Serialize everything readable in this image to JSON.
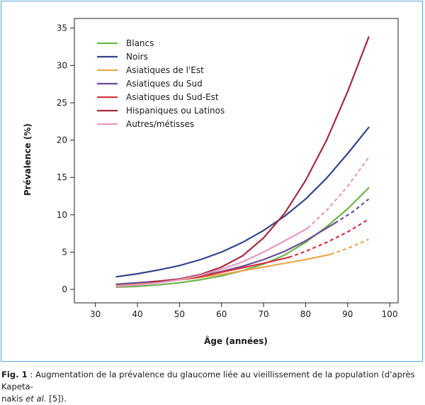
{
  "chart_data": {
    "type": "line",
    "xlabel": "Âge (années)",
    "ylabel": "Prévalence (%)",
    "xlim": [
      25,
      102
    ],
    "ylim": [
      -1.8,
      36.3
    ],
    "xticks": [
      30,
      40,
      50,
      60,
      70,
      80,
      90,
      100
    ],
    "yticks": [
      0,
      5,
      10,
      15,
      20,
      25,
      30,
      35
    ],
    "grid": false,
    "legend_position": "top-left",
    "series": [
      {
        "name": "Blancs",
        "color": "#6db64c",
        "solid": [
          [
            35,
            0.3
          ],
          [
            40,
            0.4
          ],
          [
            45,
            0.6
          ],
          [
            50,
            0.9
          ],
          [
            55,
            1.3
          ],
          [
            60,
            1.8
          ],
          [
            65,
            2.5
          ],
          [
            70,
            3.4
          ],
          [
            75,
            4.6
          ],
          [
            80,
            6.3
          ],
          [
            85,
            8.4
          ],
          [
            90,
            10.8
          ],
          [
            95,
            13.6
          ]
        ],
        "dashed": []
      },
      {
        "name": "Noirs",
        "color": "#33448b",
        "solid": [
          [
            35,
            1.7
          ],
          [
            40,
            2.1
          ],
          [
            45,
            2.6
          ],
          [
            50,
            3.2
          ],
          [
            55,
            4.0
          ],
          [
            60,
            5.0
          ],
          [
            65,
            6.3
          ],
          [
            70,
            7.9
          ],
          [
            75,
            9.8
          ],
          [
            80,
            12.1
          ],
          [
            85,
            14.9
          ],
          [
            90,
            18.2
          ],
          [
            95,
            21.7
          ]
        ],
        "dashed": []
      },
      {
        "name": "Asiatiques de l'Est",
        "color": "#e8a84a",
        "solid": [
          [
            35,
            0.6
          ],
          [
            40,
            0.8
          ],
          [
            45,
            1.0
          ],
          [
            50,
            1.3
          ],
          [
            55,
            1.6
          ],
          [
            60,
            2.0
          ],
          [
            65,
            2.5
          ],
          [
            70,
            3.0
          ],
          [
            75,
            3.5
          ],
          [
            80,
            4.0
          ],
          [
            86,
            4.7
          ]
        ],
        "dashed": [
          [
            86,
            4.7
          ],
          [
            90,
            5.5
          ],
          [
            95,
            6.7
          ]
        ]
      },
      {
        "name": "Asiatiques du Sud",
        "color": "#6c4b95",
        "solid": [
          [
            35,
            0.7
          ],
          [
            40,
            0.9
          ],
          [
            45,
            1.1
          ],
          [
            50,
            1.4
          ],
          [
            55,
            1.8
          ],
          [
            60,
            2.4
          ],
          [
            65,
            3.1
          ],
          [
            70,
            4.0
          ],
          [
            75,
            5.1
          ],
          [
            80,
            6.5
          ],
          [
            87,
            8.9
          ]
        ],
        "dashed": [
          [
            87,
            8.9
          ],
          [
            91,
            10.3
          ],
          [
            95,
            12.1
          ]
        ]
      },
      {
        "name": "Asiatiques du Sud-Est",
        "color": "#d2343f",
        "solid": [
          [
            35,
            0.4
          ],
          [
            40,
            0.6
          ],
          [
            45,
            0.9
          ],
          [
            50,
            1.3
          ],
          [
            55,
            1.7
          ],
          [
            60,
            2.3
          ],
          [
            65,
            2.9
          ],
          [
            70,
            3.5
          ],
          [
            76,
            4.3
          ]
        ],
        "dashed": [
          [
            76,
            4.3
          ],
          [
            80,
            5.1
          ],
          [
            85,
            6.3
          ],
          [
            90,
            7.7
          ],
          [
            95,
            9.4
          ]
        ]
      },
      {
        "name": "Hispaniques ou Latinos",
        "color": "#a52a3d",
        "solid": [
          [
            43,
            1.0
          ],
          [
            47,
            1.2
          ],
          [
            50,
            1.4
          ],
          [
            55,
            2.0
          ],
          [
            60,
            3.0
          ],
          [
            65,
            4.5
          ],
          [
            70,
            6.9
          ],
          [
            75,
            10.2
          ],
          [
            80,
            14.6
          ],
          [
            85,
            20.0
          ],
          [
            90,
            26.5
          ],
          [
            95,
            33.8
          ]
        ],
        "dashed": []
      },
      {
        "name": "Autres/métisses",
        "color": "#e59ac0",
        "solid": [
          [
            35,
            0.4
          ],
          [
            40,
            0.6
          ],
          [
            45,
            0.9
          ],
          [
            50,
            1.3
          ],
          [
            55,
            1.9
          ],
          [
            60,
            2.7
          ],
          [
            65,
            3.7
          ],
          [
            70,
            5.0
          ],
          [
            75,
            6.5
          ],
          [
            80.5,
            8.2
          ]
        ],
        "dashed": [
          [
            80.5,
            8.2
          ],
          [
            85,
            10.6
          ],
          [
            90,
            13.8
          ],
          [
            95,
            17.7
          ]
        ]
      }
    ]
  },
  "caption": {
    "fig_label": "Fig. 1",
    "line1": " : Augmentation de la prévalence du glaucome liée au vieillissement de la population (d'après Kapeta-",
    "line2_start": "nakis ",
    "line2_italic": "et al.",
    "line2_end": " [5])."
  }
}
